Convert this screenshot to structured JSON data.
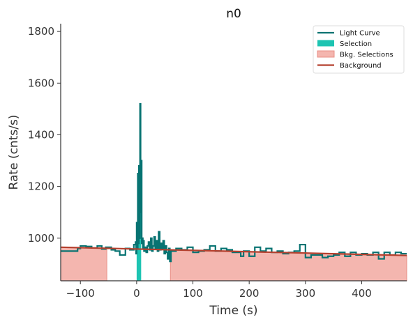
{
  "colors": {
    "light_curve": "#077372",
    "selection": "#1dc4b2",
    "bkg_selection": "#f4b6af",
    "bkg_selection_edge": "#e88f86",
    "background": "#b5402e",
    "axis": "#333333"
  },
  "chart_data": {
    "type": "line",
    "title": "n0",
    "xlabel": "Time (s)",
    "ylabel": "Rate (cnts/s)",
    "xlim": [
      -135,
      480
    ],
    "ylim": [
      835,
      1830
    ],
    "x_ticks": [
      -100,
      0,
      100,
      200,
      300,
      400
    ],
    "x_tick_labels": [
      "−100",
      "0",
      "100",
      "200",
      "300",
      "400"
    ],
    "y_ticks": [
      1000,
      1200,
      1400,
      1600,
      1800
    ],
    "y_tick_labels": [
      "1000",
      "1200",
      "1400",
      "1600",
      "1800"
    ],
    "grid": false,
    "legend": {
      "placement": "top-right",
      "entries": [
        "Light Curve",
        "Selection",
        "Bkg. Selections",
        "Background"
      ]
    },
    "series": [
      {
        "name": "Light Curve",
        "style": "step",
        "points": [
          [
            -135,
            950
          ],
          [
            -120,
            950
          ],
          [
            -105,
            960
          ],
          [
            -100,
            970
          ],
          [
            -90,
            968
          ],
          [
            -80,
            962
          ],
          [
            -70,
            970
          ],
          [
            -62,
            958
          ],
          [
            -55,
            965
          ],
          [
            -45,
            955
          ],
          [
            -38,
            950
          ],
          [
            -30,
            935
          ],
          [
            -20,
            960
          ],
          [
            -12,
            955
          ],
          [
            -5,
            975
          ],
          [
            -2,
            985
          ],
          [
            -1,
            940
          ],
          [
            0,
            1060
          ],
          [
            1,
            960
          ],
          [
            2,
            1250
          ],
          [
            3,
            980
          ],
          [
            4,
            1280
          ],
          [
            5,
            1000
          ],
          [
            6,
            1520
          ],
          [
            7,
            1100
          ],
          [
            8,
            1300
          ],
          [
            9,
            980
          ],
          [
            10,
            1000
          ],
          [
            11,
            960
          ],
          [
            12,
            990
          ],
          [
            13,
            950
          ],
          [
            15,
            965
          ],
          [
            17,
            945
          ],
          [
            19,
            970
          ],
          [
            21,
            985
          ],
          [
            23,
            955
          ],
          [
            25,
            1000
          ],
          [
            27,
            950
          ],
          [
            29,
            970
          ],
          [
            31,
            1005
          ],
          [
            33,
            960
          ],
          [
            35,
            990
          ],
          [
            37,
            950
          ],
          [
            39,
            1025
          ],
          [
            41,
            955
          ],
          [
            43,
            980
          ],
          [
            45,
            960
          ],
          [
            47,
            990
          ],
          [
            49,
            940
          ],
          [
            51,
            970
          ],
          [
            53,
            945
          ],
          [
            55,
            920
          ],
          [
            57,
            960
          ],
          [
            59,
            910
          ],
          [
            61,
            950
          ],
          [
            70,
            960
          ],
          [
            80,
            955
          ],
          [
            90,
            965
          ],
          [
            100,
            945
          ],
          [
            110,
            950
          ],
          [
            120,
            955
          ],
          [
            130,
            970
          ],
          [
            140,
            950
          ],
          [
            150,
            960
          ],
          [
            160,
            955
          ],
          [
            170,
            945
          ],
          [
            180,
            945
          ],
          [
            185,
            930
          ],
          [
            190,
            950
          ],
          [
            200,
            930
          ],
          [
            210,
            965
          ],
          [
            220,
            950
          ],
          [
            230,
            960
          ],
          [
            240,
            945
          ],
          [
            250,
            950
          ],
          [
            260,
            940
          ],
          [
            270,
            945
          ],
          [
            280,
            950
          ],
          [
            290,
            975
          ],
          [
            300,
            925
          ],
          [
            310,
            935
          ],
          [
            320,
            935
          ],
          [
            330,
            925
          ],
          [
            340,
            930
          ],
          [
            350,
            935
          ],
          [
            360,
            945
          ],
          [
            370,
            930
          ],
          [
            380,
            945
          ],
          [
            390,
            935
          ],
          [
            400,
            940
          ],
          [
            410,
            935
          ],
          [
            420,
            945
          ],
          [
            430,
            920
          ],
          [
            440,
            945
          ],
          [
            450,
            935
          ],
          [
            460,
            945
          ],
          [
            470,
            940
          ],
          [
            480,
            940
          ]
        ]
      },
      {
        "name": "Background",
        "style": "line",
        "points": [
          [
            -135,
            965
          ],
          [
            480,
            933
          ]
        ]
      }
    ],
    "selection": {
      "name": "Selection",
      "x_start": 0,
      "x_end": 8
    },
    "bkg_selections": [
      {
        "name": "Bkg. Selections",
        "x_start": -135,
        "x_end": -53
      },
      {
        "name": "Bkg. Selections",
        "x_start": 60,
        "x_end": 480
      }
    ]
  }
}
